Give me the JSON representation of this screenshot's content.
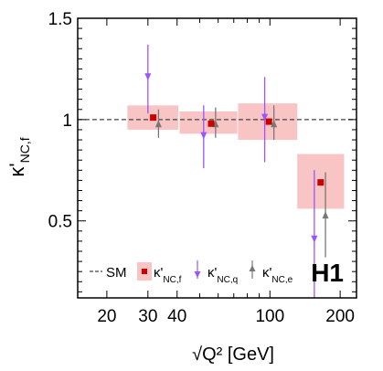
{
  "chart_data": {
    "type": "scatter",
    "title": "",
    "xlabel": "√Q² [GeV]",
    "ylabel": "κ'NC,f",
    "xscale": "log",
    "xlim": [
      15,
      235
    ],
    "ylim": [
      0.12,
      1.5
    ],
    "x_ticks": [
      20,
      30,
      40,
      100,
      200
    ],
    "x_tick_labels": [
      "20",
      "30",
      "40",
      "100",
      "200"
    ],
    "y_ticks": [
      0.5,
      1,
      1.5
    ],
    "y_tick_labels": [
      "0.5",
      "1",
      "1.5"
    ],
    "grid": false,
    "legend": "bottom",
    "reference_line": {
      "name": "SM",
      "value": 1.0
    },
    "experiment_label": "H1",
    "series": [
      {
        "name": "κ'NC,f",
        "color": "#cc0000",
        "band_color": "#f8c4c4",
        "points": [
          {
            "x": 31.6,
            "y": 1.01,
            "xlow": 24.5,
            "xhigh": 40.5,
            "ylow": 0.95,
            "yhigh": 1.07
          },
          {
            "x": 56.0,
            "y": 0.98,
            "xlow": 41.0,
            "xhigh": 72.5,
            "ylow": 0.93,
            "yhigh": 1.04
          },
          {
            "x": 99.0,
            "y": 0.99,
            "xlow": 73.0,
            "xhigh": 131.0,
            "ylow": 0.9,
            "yhigh": 1.08
          },
          {
            "x": 165.0,
            "y": 0.69,
            "xlow": 131.0,
            "xhigh": 208.0,
            "ylow": 0.56,
            "yhigh": 0.83
          }
        ]
      },
      {
        "name": "κ'NC,q",
        "color": "#9955ff",
        "points": [
          {
            "x": 30.0,
            "y": 1.21,
            "ylow": 1.03,
            "yhigh": 1.37
          },
          {
            "x": 52.0,
            "y": 0.92,
            "xlow": 0,
            "xhigh": 0,
            "ylow": 0.76,
            "yhigh": 1.07
          },
          {
            "x": 95.0,
            "y": 1.01,
            "ylow": 0.79,
            "yhigh": 1.21
          },
          {
            "x": 155.0,
            "y": 0.41,
            "ylow": 0.12,
            "yhigh": 0.75
          }
        ]
      },
      {
        "name": "κ'NC,e",
        "color": "#777777",
        "points": [
          {
            "x": 33.3,
            "y": 0.98,
            "ylow": 0.91,
            "yhigh": 1.05
          },
          {
            "x": 58.5,
            "y": 0.98,
            "ylow": 0.91,
            "yhigh": 1.06
          },
          {
            "x": 104.0,
            "y": 0.98,
            "ylow": 0.9,
            "yhigh": 1.07
          },
          {
            "x": 173.0,
            "y": 0.53,
            "ylow": 0.32,
            "yhigh": 0.74
          }
        ]
      }
    ],
    "legend_entries": [
      {
        "key": "sm",
        "label": "SM"
      },
      {
        "key": "f",
        "label_main": "κ'",
        "label_sub": "NC,f"
      },
      {
        "key": "q",
        "label_main": "κ'",
        "label_sub": "NC,q"
      },
      {
        "key": "e",
        "label_main": "κ'",
        "label_sub": "NC,e"
      }
    ]
  }
}
